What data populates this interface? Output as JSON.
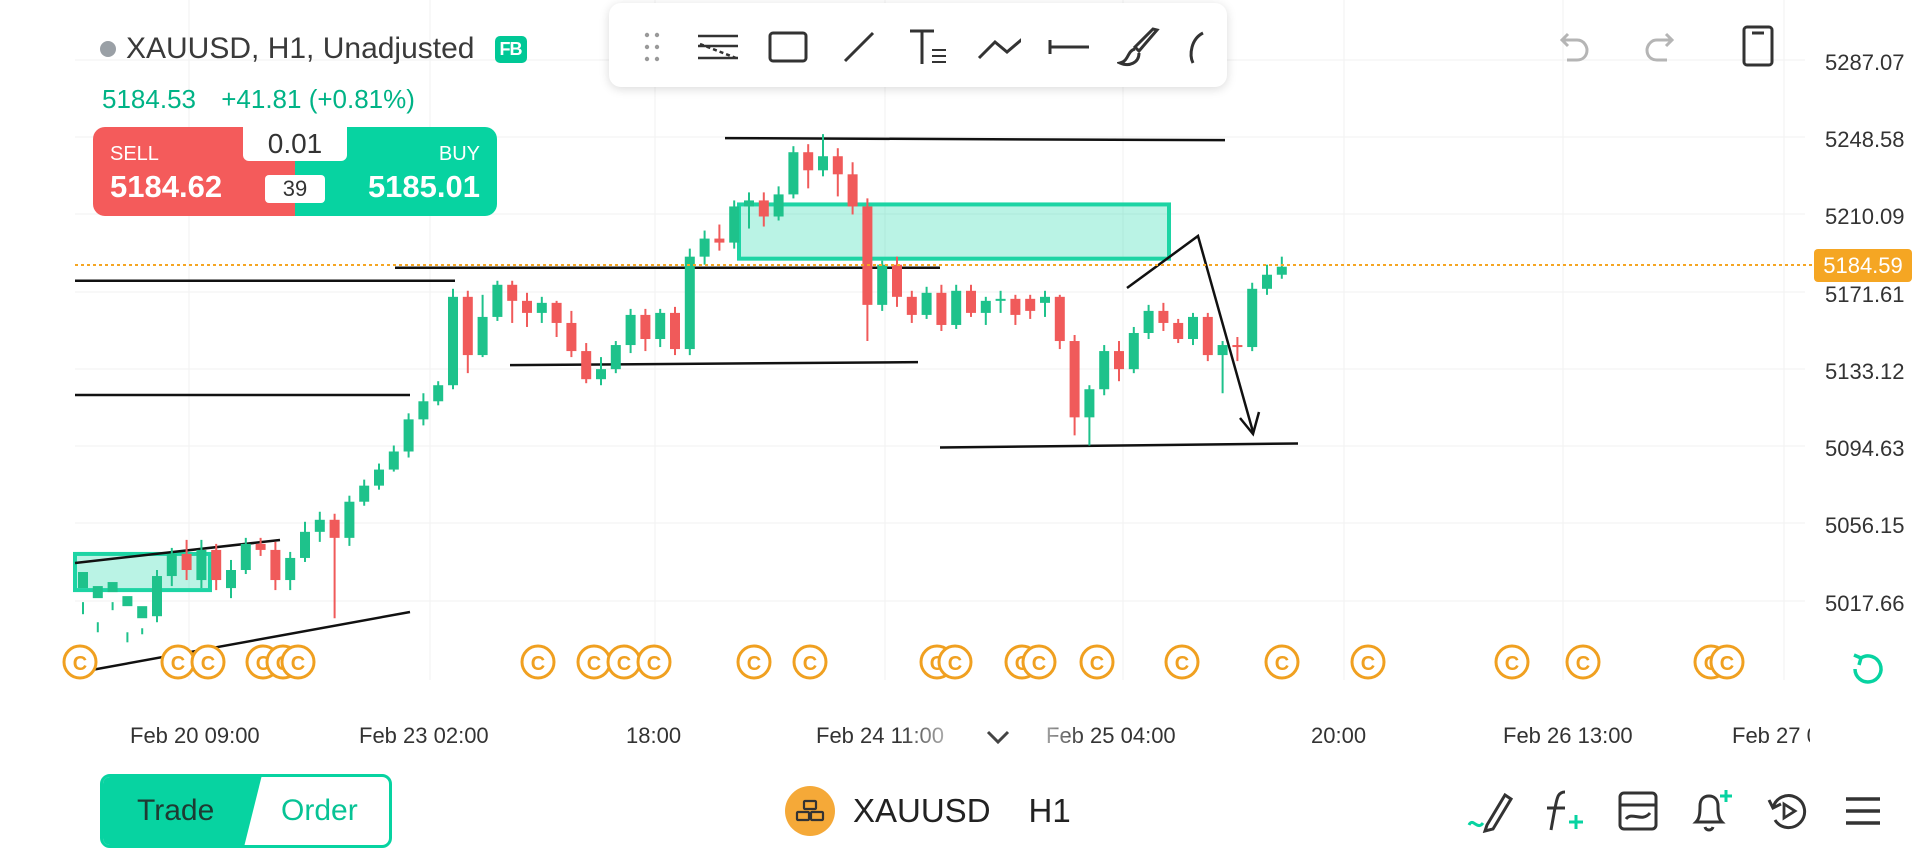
{
  "header": {
    "symbol_title": "XAUUSD, H1, Unadjusted",
    "badge": "FB",
    "last_price": "5184.53",
    "change": "+41.81 (+0.81%)"
  },
  "trade_panel": {
    "sell_label": "SELL",
    "sell_price": "5184.62",
    "buy_label": "BUY",
    "buy_price": "5185.01",
    "quantity": "0.01",
    "spread": "39"
  },
  "drawing_toolbar": {
    "tools": [
      "drag-handle-icon",
      "fibonacci-icon",
      "rectangle-icon",
      "trendline-icon",
      "text-icon",
      "path-icon",
      "horizontal-line-icon",
      "brush-icon",
      "arc-icon"
    ]
  },
  "top_right_icons": [
    "undo-icon",
    "redo-icon",
    "phone-layout-icon"
  ],
  "price_axis": {
    "labels": [
      "5287.07",
      "5248.58",
      "5210.09",
      "5171.61",
      "5133.12",
      "5094.63",
      "5056.15",
      "5017.66"
    ],
    "current_price": "5184.59"
  },
  "time_axis": {
    "labels": [
      "Feb 20 09:00",
      "Feb 23 02:00",
      "18:00",
      "Feb 24 11:00",
      "Feb 25 04:00",
      "20:00",
      "Feb 26 13:00",
      "Feb 27 0"
    ]
  },
  "event_marker_glyph": "C",
  "bottom_bar": {
    "trade_tab": "Trade",
    "order_tab": "Order",
    "symbol": "XAUUSD",
    "timeframe": "H1",
    "icons": [
      "draw-pen-icon",
      "indicator-fx-icon",
      "chart-template-icon",
      "alert-add-icon",
      "replay-icon",
      "menu-icon"
    ]
  },
  "colors": {
    "bull": "#1ec28b",
    "bear": "#f05a5a",
    "accent": "#07d3a1",
    "current_price": "#f5a623",
    "event": "#f0a020"
  },
  "chart_data": {
    "type": "candlestick",
    "symbol": "XAUUSD",
    "timeframe": "H1",
    "y_axis_range": [
      5000,
      5300
    ],
    "candles": [
      [
        5025,
        5033,
        5018,
        5012
      ],
      [
        5020,
        5026,
        5008,
        5003
      ],
      [
        5023,
        5028,
        5018,
        5014
      ],
      [
        5016,
        5021,
        5003,
        4998
      ],
      [
        5010,
        5016,
        5005,
        5002
      ],
      [
        5011,
        5031,
        5034,
        5008
      ],
      [
        5031,
        5042,
        5045,
        5026
      ],
      [
        5042,
        5034,
        5049,
        5029
      ],
      [
        5029,
        5044,
        5049,
        5025
      ],
      [
        5044,
        5029,
        5047,
        5024
      ],
      [
        5025,
        5034,
        5039,
        5020
      ],
      [
        5034,
        5047,
        5050,
        5032
      ],
      [
        5047,
        5044,
        5050,
        5041
      ],
      [
        5044,
        5029,
        5048,
        5024
      ],
      [
        5029,
        5040,
        5043,
        5024
      ],
      [
        5040,
        5053,
        5058,
        5038
      ],
      [
        5053,
        5059,
        5063,
        5048
      ],
      [
        5059,
        5050,
        5062,
        5010
      ],
      [
        5050,
        5068,
        5071,
        5046
      ],
      [
        5068,
        5076,
        5079,
        5066
      ],
      [
        5076,
        5084,
        5087,
        5074
      ],
      [
        5084,
        5093,
        5096,
        5083
      ],
      [
        5093,
        5109,
        5112,
        5090
      ],
      [
        5109,
        5118,
        5122,
        5106
      ],
      [
        5118,
        5126,
        5128,
        5116
      ],
      [
        5126,
        5170,
        5174,
        5124
      ],
      [
        5170,
        5141,
        5173,
        5132
      ],
      [
        5141,
        5160,
        5171,
        5140
      ],
      [
        5160,
        5176,
        5178,
        5158
      ],
      [
        5176,
        5168,
        5178,
        5157
      ],
      [
        5168,
        5162,
        5172,
        5155
      ],
      [
        5162,
        5167,
        5170,
        5157
      ],
      [
        5167,
        5157,
        5168,
        5150
      ],
      [
        5157,
        5143,
        5163,
        5140
      ],
      [
        5143,
        5129,
        5147,
        5127
      ],
      [
        5129,
        5134,
        5140,
        5126
      ],
      [
        5134,
        5146,
        5148,
        5132
      ],
      [
        5146,
        5161,
        5164,
        5142
      ],
      [
        5161,
        5149,
        5164,
        5143
      ],
      [
        5149,
        5162,
        5164,
        5145
      ],
      [
        5162,
        5144,
        5165,
        5141
      ],
      [
        5144,
        5190,
        5194,
        5141
      ],
      [
        5190,
        5199,
        5203,
        5186
      ],
      [
        5199,
        5197,
        5206,
        5193
      ],
      [
        5197,
        5215,
        5218,
        5194
      ],
      [
        5215,
        5218,
        5222,
        5204
      ],
      [
        5218,
        5210,
        5222,
        5205
      ],
      [
        5210,
        5221,
        5225,
        5208
      ],
      [
        5221,
        5242,
        5245,
        5219
      ],
      [
        5242,
        5233,
        5246,
        5224
      ],
      [
        5233,
        5240,
        5251,
        5230
      ],
      [
        5240,
        5231,
        5244,
        5220
      ],
      [
        5231,
        5215,
        5237,
        5211
      ],
      [
        5215,
        5166,
        5219,
        5148
      ],
      [
        5166,
        5186,
        5188,
        5163
      ],
      [
        5186,
        5170,
        5190,
        5165
      ],
      [
        5170,
        5161,
        5173,
        5157
      ],
      [
        5161,
        5172,
        5175,
        5159
      ],
      [
        5172,
        5156,
        5176,
        5153
      ],
      [
        5156,
        5173,
        5176,
        5154
      ],
      [
        5173,
        5162,
        5176,
        5160
      ],
      [
        5162,
        5168,
        5170,
        5156
      ],
      [
        5168,
        5169,
        5173,
        5162
      ],
      [
        5169,
        5161,
        5171,
        5156
      ],
      [
        5169,
        5163,
        5171,
        5159
      ],
      [
        5167,
        5170,
        5173,
        5160
      ],
      [
        5170,
        5148,
        5171,
        5144
      ],
      [
        5148,
        5110,
        5151,
        5101
      ],
      [
        5110,
        5124,
        5126,
        5096
      ],
      [
        5124,
        5143,
        5146,
        5121
      ],
      [
        5143,
        5134,
        5148,
        5128
      ],
      [
        5134,
        5152,
        5155,
        5132
      ],
      [
        5152,
        5163,
        5166,
        5149
      ],
      [
        5163,
        5157,
        5167,
        5153
      ],
      [
        5157,
        5149,
        5159,
        5147
      ],
      [
        5149,
        5160,
        5162,
        5146
      ],
      [
        5160,
        5141,
        5162,
        5138
      ],
      [
        5141,
        5146,
        5148,
        5122
      ],
      [
        5146,
        5145,
        5150,
        5138
      ],
      [
        5145,
        5174,
        5177,
        5143
      ],
      [
        5174,
        5181,
        5186,
        5171
      ],
      [
        5181,
        5185,
        5190,
        5179
      ]
    ],
    "horizontal_lines": [
      5249,
      5178,
      5136,
      5096
    ],
    "supply_zone": {
      "top": 5216,
      "bottom": 5189
    }
  }
}
